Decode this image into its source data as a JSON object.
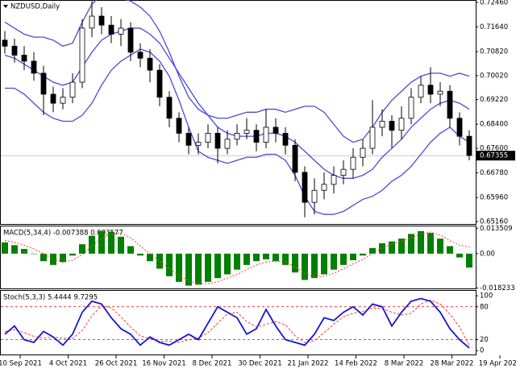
{
  "chart_data": [
    {
      "type": "candlestick",
      "title": "NZDUSD,Daily",
      "x_labels": [
        "10 Sep 2021",
        "4 Oct 2021",
        "26 Oct 2021",
        "16 Nov 2021",
        "8 Dec 2021",
        "30 Dec 2021",
        "21 Jan 2022",
        "14 Feb 2022",
        "8 Mar 2022",
        "28 Mar 2022",
        "19 Apr 2022"
      ],
      "open": [
        0.712,
        0.71,
        0.707,
        0.705,
        0.701,
        0.694,
        0.691,
        0.693,
        0.698,
        0.716,
        0.72,
        0.717,
        0.714,
        0.716,
        0.708,
        0.706,
        0.702,
        0.693,
        0.686,
        0.681,
        0.677,
        0.678,
        0.681,
        0.676,
        0.679,
        0.681,
        0.682,
        0.678,
        0.683,
        0.681,
        0.677,
        0.668,
        0.658,
        0.662,
        0.664,
        0.667,
        0.669,
        0.673,
        0.676,
        0.683,
        0.685,
        0.682,
        0.686,
        0.693,
        0.697,
        0.694,
        0.695,
        0.686,
        0.68
      ],
      "high": [
        0.715,
        0.7125,
        0.71,
        0.708,
        0.7035,
        0.6965,
        0.696,
        0.701,
        0.719,
        0.725,
        0.723,
        0.72,
        0.719,
        0.718,
        0.711,
        0.709,
        0.704,
        0.695,
        0.688,
        0.683,
        0.681,
        0.684,
        0.683,
        0.682,
        0.684,
        0.686,
        0.684,
        0.689,
        0.686,
        0.683,
        0.679,
        0.67,
        0.666,
        0.668,
        0.67,
        0.672,
        0.676,
        0.679,
        0.692,
        0.689,
        0.687,
        0.69,
        0.696,
        0.7,
        0.703,
        0.698,
        0.697,
        0.688,
        0.682
      ],
      "low": [
        0.7075,
        0.7045,
        0.702,
        0.6985,
        0.687,
        0.688,
        0.689,
        0.691,
        0.696,
        0.713,
        0.714,
        0.711,
        0.71,
        0.705,
        0.703,
        0.698,
        0.69,
        0.683,
        0.678,
        0.674,
        0.674,
        0.676,
        0.671,
        0.674,
        0.677,
        0.679,
        0.675,
        0.676,
        0.678,
        0.674,
        0.665,
        0.653,
        0.654,
        0.659,
        0.661,
        0.664,
        0.666,
        0.67,
        0.674,
        0.68,
        0.676,
        0.679,
        0.684,
        0.691,
        0.691,
        0.69,
        0.683,
        0.677,
        0.672
      ],
      "close": [
        0.71,
        0.707,
        0.705,
        0.701,
        0.694,
        0.691,
        0.693,
        0.698,
        0.716,
        0.72,
        0.717,
        0.714,
        0.716,
        0.708,
        0.706,
        0.702,
        0.693,
        0.686,
        0.681,
        0.677,
        0.678,
        0.681,
        0.676,
        0.679,
        0.681,
        0.682,
        0.678,
        0.683,
        0.681,
        0.677,
        0.668,
        0.658,
        0.662,
        0.664,
        0.667,
        0.669,
        0.673,
        0.676,
        0.683,
        0.685,
        0.682,
        0.686,
        0.693,
        0.697,
        0.694,
        0.695,
        0.686,
        0.68,
        0.6736
      ],
      "series": [
        {
          "color": "#4b4bd8",
          "values": [
            0.718,
            0.716,
            0.714,
            0.713,
            0.713,
            0.712,
            0.71,
            0.711,
            0.718,
            0.724,
            0.727,
            0.727,
            0.726,
            0.725,
            0.723,
            0.72,
            0.715,
            0.708,
            0.7,
            0.693,
            0.689,
            0.687,
            0.686,
            0.686,
            0.687,
            0.688,
            0.688,
            0.689,
            0.689,
            0.688,
            0.689,
            0.69,
            0.69,
            0.688,
            0.684,
            0.68,
            0.678,
            0.679,
            0.683,
            0.688,
            0.692,
            0.695,
            0.698,
            0.7,
            0.701,
            0.701,
            0.7,
            0.701,
            0.7
          ]
        },
        {
          "color": "#4b4bd8",
          "values": [
            0.707,
            0.706,
            0.704,
            0.702,
            0.7,
            0.698,
            0.697,
            0.698,
            0.703,
            0.708,
            0.712,
            0.714,
            0.715,
            0.716,
            0.716,
            0.714,
            0.711,
            0.706,
            0.701,
            0.696,
            0.691,
            0.687,
            0.683,
            0.681,
            0.68,
            0.68,
            0.68,
            0.681,
            0.681,
            0.68,
            0.678,
            0.675,
            0.672,
            0.669,
            0.667,
            0.666,
            0.666,
            0.667,
            0.669,
            0.673,
            0.676,
            0.679,
            0.683,
            0.686,
            0.689,
            0.691,
            0.692,
            0.691,
            0.689
          ]
        },
        {
          "color": "#4b4bd8",
          "values": [
            0.696,
            0.696,
            0.694,
            0.691,
            0.688,
            0.686,
            0.685,
            0.685,
            0.687,
            0.691,
            0.697,
            0.702,
            0.705,
            0.707,
            0.709,
            0.708,
            0.705,
            0.7,
            0.692,
            0.683,
            0.675,
            0.673,
            0.672,
            0.671,
            0.672,
            0.673,
            0.673,
            0.674,
            0.674,
            0.672,
            0.667,
            0.66,
            0.655,
            0.654,
            0.654,
            0.655,
            0.657,
            0.659,
            0.66,
            0.662,
            0.665,
            0.667,
            0.67,
            0.674,
            0.678,
            0.681,
            0.683,
            0.68,
            0.678
          ]
        }
      ],
      "last_price": 0.67355,
      "ylim": [
        0.6508,
        0.7251
      ],
      "yticks": [
        {
          "value": 0.7246,
          "label": "0.72460"
        },
        {
          "value": 0.7164,
          "label": "0.71640"
        },
        {
          "value": 0.7082,
          "label": "0.70820"
        },
        {
          "value": 0.7002,
          "label": "0.70020"
        },
        {
          "value": 0.6922,
          "label": "0.69220"
        },
        {
          "value": 0.684,
          "label": "0.68400"
        },
        {
          "value": 0.676,
          "label": "0.67600"
        },
        {
          "value": 0.6678,
          "label": "0.66780"
        },
        {
          "value": 0.6596,
          "label": "0.65960"
        },
        {
          "value": 0.6516,
          "label": "0.65160"
        }
      ]
    },
    {
      "type": "macd",
      "title": "MACD(5,34,4) -0.007388 0.003577",
      "series": [
        {
          "color": "#008000",
          "values": [
            0.006,
            0.0045,
            0.0025,
            0.0,
            -0.004,
            -0.006,
            -0.0045,
            -0.001,
            0.005,
            0.0095,
            0.012,
            0.0115,
            0.009,
            0.004,
            -0.001,
            -0.004,
            -0.008,
            -0.012,
            -0.015,
            -0.017,
            -0.0165,
            -0.015,
            -0.013,
            -0.011,
            -0.0085,
            -0.006,
            -0.004,
            -0.003,
            -0.004,
            -0.006,
            -0.01,
            -0.014,
            -0.013,
            -0.011,
            -0.0085,
            -0.006,
            -0.0035,
            -0.001,
            0.003,
            0.0055,
            0.0065,
            0.008,
            0.0105,
            0.012,
            0.011,
            0.008,
            0.004,
            -0.002,
            -0.0074
          ]
        },
        {
          "color": "#ff3b3b",
          "values": [
            0.007,
            0.006,
            0.0045,
            0.0025,
            0.0,
            -0.003,
            -0.0045,
            -0.0035,
            -0.0005,
            0.004,
            0.008,
            0.0105,
            0.011,
            0.0085,
            0.004,
            0.0,
            -0.004,
            -0.008,
            -0.0115,
            -0.0145,
            -0.016,
            -0.016,
            -0.015,
            -0.013,
            -0.011,
            -0.0085,
            -0.006,
            -0.0045,
            -0.004,
            -0.0045,
            -0.007,
            -0.0105,
            -0.0125,
            -0.012,
            -0.0105,
            -0.008,
            -0.0055,
            -0.003,
            0.0,
            0.003,
            0.005,
            0.0065,
            0.0085,
            0.0105,
            0.0115,
            0.01,
            0.007,
            0.0045,
            0.0036
          ]
        }
      ],
      "ylim": [
        -0.0185,
        0.0145
      ],
      "yticks": [
        0.013509,
        {
          "value": 0,
          "label": "0.00"
        },
        -0.018233
      ]
    },
    {
      "type": "stochastic",
      "title": "Stoch(5,3,3) 5.4444 9.7295",
      "series": [
        {
          "color": "#1515d0",
          "values": [
            30,
            45,
            20,
            15,
            35,
            25,
            10,
            30,
            70,
            90,
            85,
            60,
            40,
            30,
            10,
            25,
            15,
            10,
            20,
            30,
            20,
            50,
            80,
            70,
            60,
            30,
            40,
            75,
            45,
            20,
            15,
            10,
            30,
            60,
            55,
            70,
            80,
            65,
            85,
            80,
            45,
            70,
            90,
            95,
            90,
            70,
            40,
            20,
            5
          ]
        },
        {
          "color": "#ff3b3b",
          "values": [
            35,
            38,
            33,
            26,
            23,
            25,
            23,
            22,
            37,
            63,
            82,
            78,
            62,
            43,
            27,
            22,
            17,
            17,
            15,
            20,
            23,
            33,
            50,
            67,
            70,
            53,
            43,
            48,
            53,
            47,
            27,
            15,
            18,
            33,
            48,
            62,
            68,
            72,
            77,
            77,
            70,
            65,
            68,
            85,
            92,
            85,
            67,
            43,
            10
          ]
        }
      ],
      "levels": [
        80,
        20
      ],
      "ylim": [
        -7,
        109
      ],
      "yticks": [
        100,
        80,
        20,
        0
      ]
    }
  ]
}
